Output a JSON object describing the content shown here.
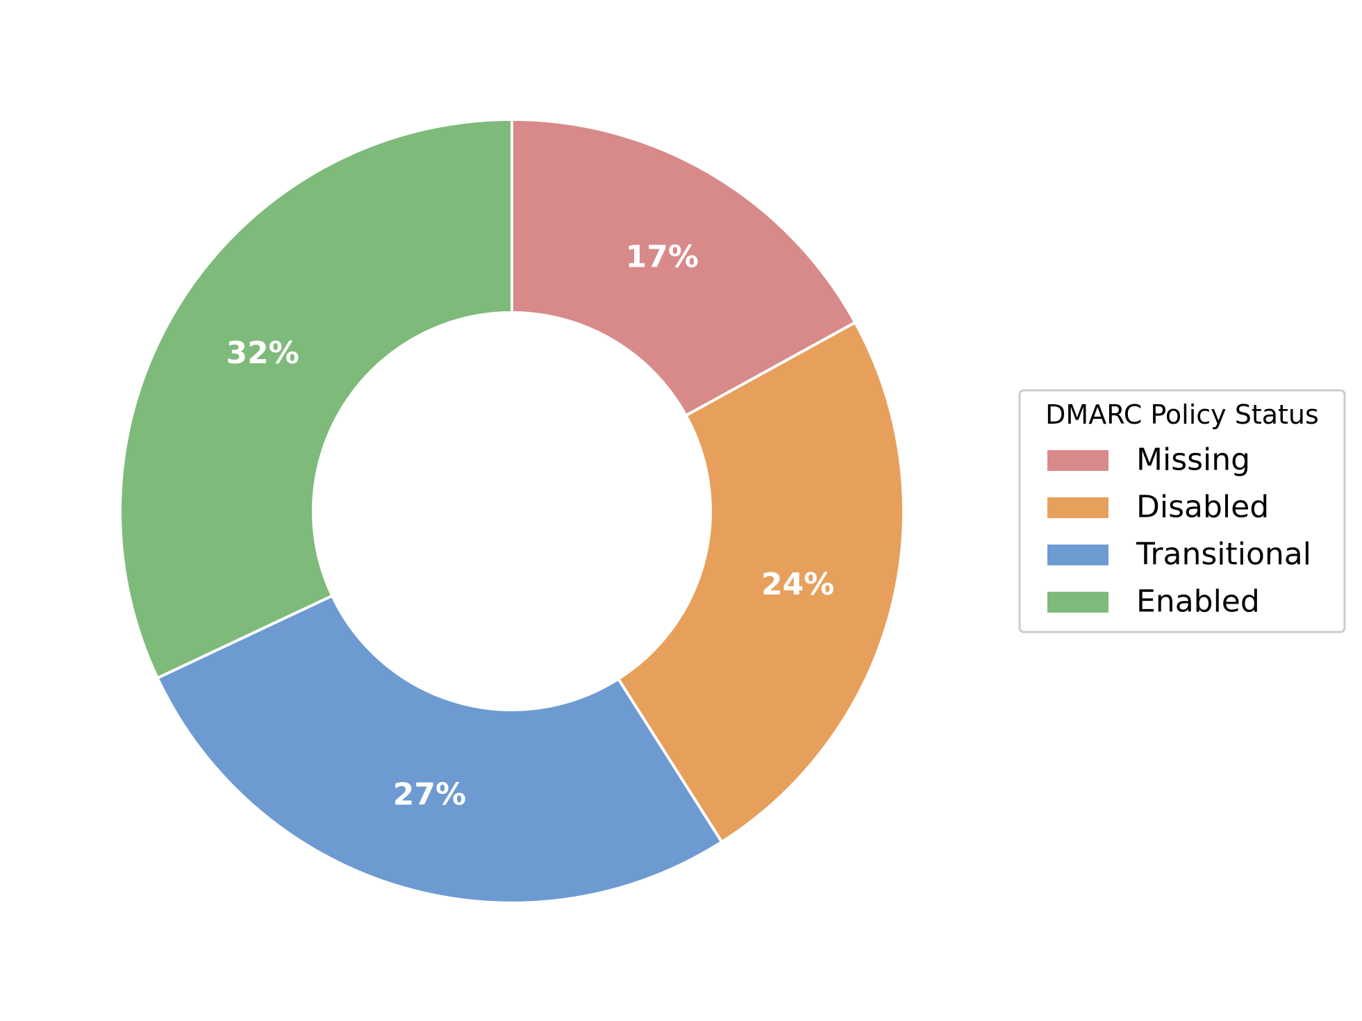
{
  "chart_data": {
    "type": "pie",
    "donut": true,
    "start_angle_deg": 90,
    "direction": "clockwise",
    "legend_title": "DMARC Policy Status",
    "legend_placement": "center-right",
    "slices": [
      {
        "label": "Missing",
        "value": 17,
        "display": "17%",
        "color": "#d88a8a"
      },
      {
        "label": "Disabled",
        "value": 24,
        "display": "24%",
        "color": "#e7a05c"
      },
      {
        "label": "Transitional",
        "value": 27,
        "display": "27%",
        "color": "#6d9bd1"
      },
      {
        "label": "Enabled",
        "value": 32,
        "display": "32%",
        "color": "#7eba7a"
      }
    ]
  }
}
